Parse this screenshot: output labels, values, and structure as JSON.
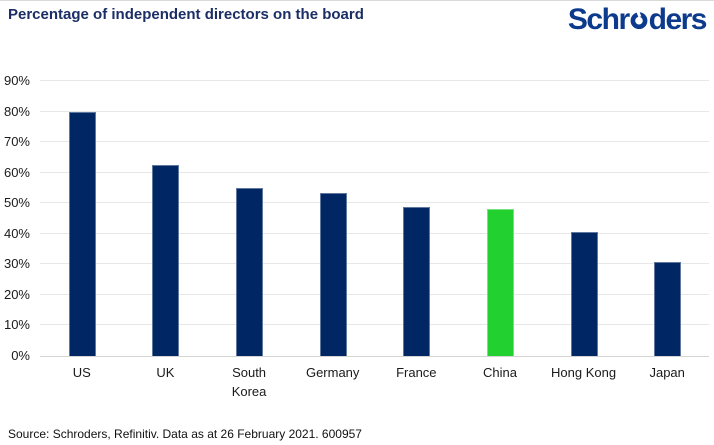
{
  "header": {
    "title": "Percentage of independent directors on the board",
    "logo": {
      "name": "Schroders",
      "before_o": "Schr",
      "after_o": "ders",
      "color": "#0c3a8d"
    }
  },
  "footer": {
    "source": "Source: Schroders, Refinitiv. Data as at 26 February 2021. 600957"
  },
  "chart_data": {
    "type": "bar",
    "title": "Percentage of independent directors on the board",
    "categories": [
      "US",
      "UK",
      "South Korea",
      "Germany",
      "France",
      "China",
      "Hong Kong",
      "Japan"
    ],
    "values": [
      80,
      62.5,
      55,
      53.5,
      48.7,
      48,
      40.5,
      30.7
    ],
    "unit": "%",
    "xlabel": "",
    "ylabel": "",
    "ylim": [
      0,
      90
    ],
    "ytick_step": 10,
    "ytick_labels": [
      "0%",
      "10%",
      "20%",
      "30%",
      "40%",
      "50%",
      "60%",
      "70%",
      "80%",
      "90%"
    ],
    "grid": true,
    "legend": false,
    "highlight_category": "China",
    "colors": {
      "bar": "#002663",
      "highlight": "#22d02f",
      "gridline": "#e7e7e7",
      "axis_line": "#d4d4d4",
      "title": "#1b2e66"
    }
  }
}
